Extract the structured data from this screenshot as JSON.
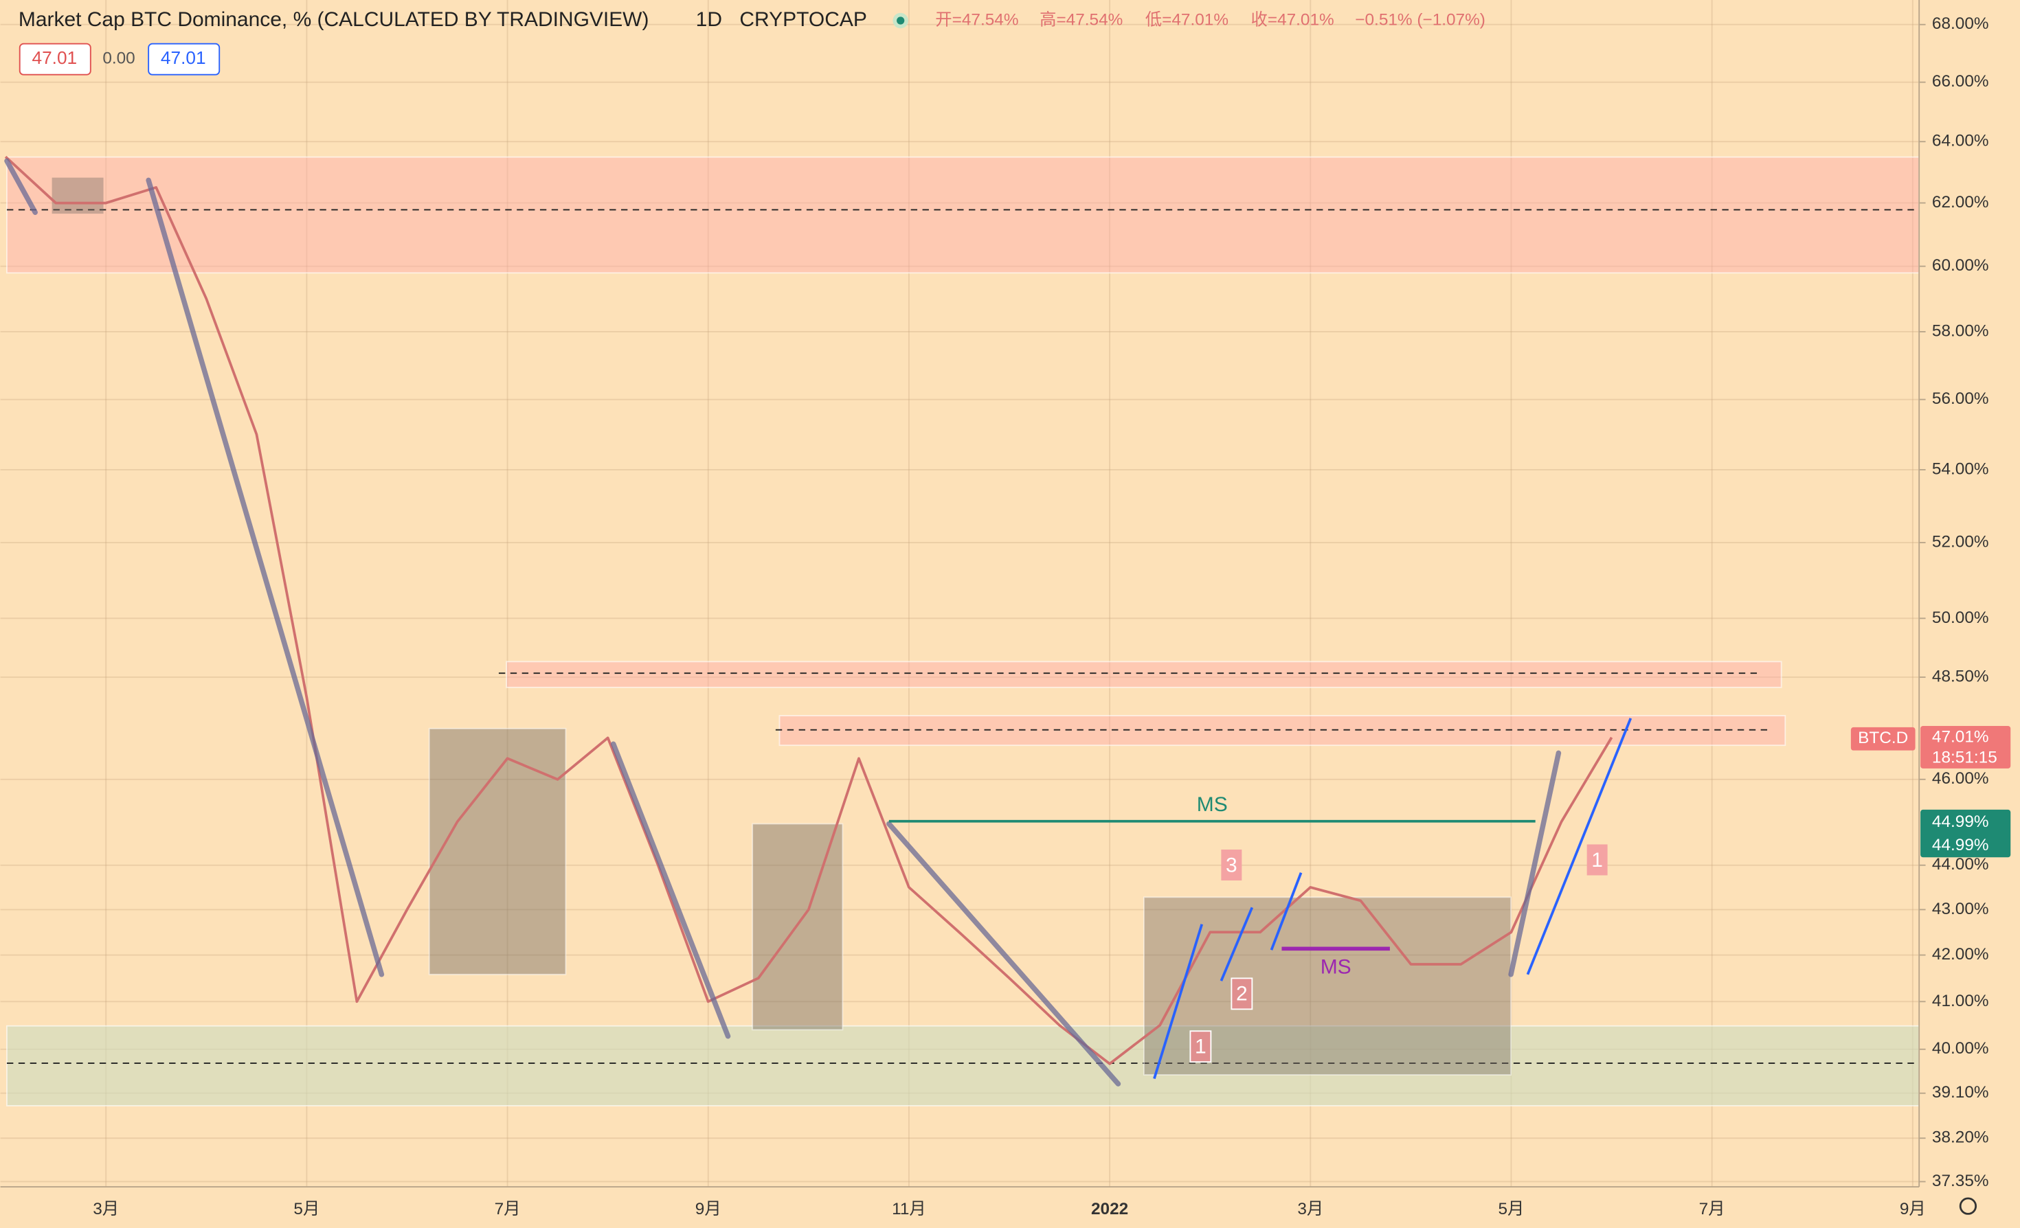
{
  "chart_data": {
    "type": "line",
    "title": "Market Cap BTC Dominance, % (CALCULATED BY TRADINGVIEW)",
    "interval": "1D",
    "exchange": "CRYPTOCAP",
    "ohlc": [
      "开=47.54%",
      "高=47.54%",
      "低=47.01%",
      "收=47.01%",
      "−0.51% (−1.07%)"
    ],
    "categories": [
      null,
      null,
      "3月",
      null,
      null,
      null,
      "5月",
      null,
      null,
      null,
      "7月",
      null,
      null,
      null,
      "9月",
      null,
      null,
      null,
      "11月",
      null,
      null,
      null,
      "2022",
      null,
      null,
      null,
      "3月",
      null,
      null,
      null,
      "5月",
      null,
      null,
      null,
      "7月",
      null,
      null,
      null,
      "9月"
    ],
    "values": [
      63.5,
      62,
      62,
      62.5,
      59,
      55,
      48,
      41,
      43,
      45,
      46.5,
      46,
      47,
      44,
      41,
      41.5,
      43,
      46.5,
      43.5,
      42.5,
      41.5,
      40.5,
      39.7,
      40.5,
      42.5,
      42.5,
      43.5,
      43.2,
      41.8,
      41.8,
      42.5,
      45,
      47.01,
      null,
      null,
      null,
      null,
      null,
      null
    ],
    "color": "#d0706e",
    "log": true,
    "grid": true,
    "ylim": [
      37.25,
      68.87
    ],
    "yticks": [
      {
        "value": 68,
        "label": "68.00%"
      },
      {
        "value": 66,
        "label": "66.00%"
      },
      {
        "value": 64,
        "label": "64.00%"
      },
      {
        "value": 62,
        "label": "62.00%"
      },
      {
        "value": 60,
        "label": "60.00%"
      },
      {
        "value": 58,
        "label": "58.00%"
      },
      {
        "value": 56,
        "label": "56.00%"
      },
      {
        "value": 54,
        "label": "54.00%"
      },
      {
        "value": 52,
        "label": "52.00%"
      },
      {
        "value": 50,
        "label": "50.00%"
      },
      {
        "value": 48.5,
        "label": "48.50%"
      },
      {
        "value": 46,
        "label": "46.00%"
      },
      {
        "value": 44,
        "label": "44.00%"
      },
      {
        "value": 43,
        "label": "43.00%"
      },
      {
        "value": 42,
        "label": "42.00%"
      },
      {
        "value": 41,
        "label": "41.00%"
      },
      {
        "value": 40,
        "label": "40.00%"
      },
      {
        "value": 39.1,
        "label": "39.10%"
      },
      {
        "value": 38.2,
        "label": "38.20%"
      },
      {
        "value": 37.35,
        "label": "37.35%"
      }
    ],
    "annotations": [
      "MS",
      "MS",
      "1",
      "2",
      "3",
      "1"
    ],
    "badges": [
      "47.01",
      "0.00",
      "47.01"
    ],
    "price_labels": [
      "BTC.D",
      "47.01%",
      "18:51:15",
      "44.99%",
      "44.99%"
    ]
  }
}
